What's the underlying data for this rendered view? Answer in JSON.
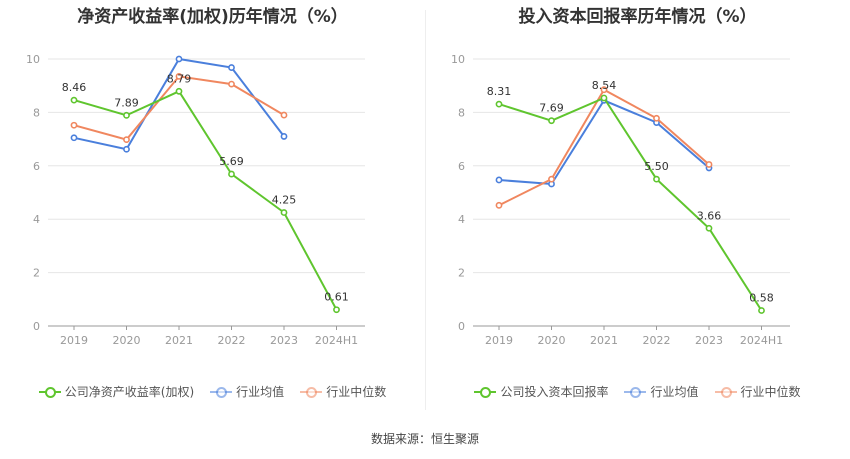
{
  "source_text": "数据来源：恒生聚源",
  "chart_data": [
    {
      "type": "line",
      "title": "净资产收益率(加权)历年情况（%）",
      "categories": [
        "2019",
        "2020",
        "2021",
        "2022",
        "2023",
        "2024H1"
      ],
      "ylim": [
        0,
        10
      ],
      "yticks": [
        0,
        2,
        4,
        6,
        8,
        10
      ],
      "grid": true,
      "legend_position": "bottom",
      "series": [
        {
          "name": "公司净资产收益率(加权)",
          "color": "#5fc52e",
          "values": [
            8.46,
            7.89,
            8.79,
            5.69,
            4.25,
            0.61
          ],
          "labels": [
            "8.46",
            "7.89",
            "8.79",
            "5.69",
            "4.25",
            "0.61"
          ]
        },
        {
          "name": "行业均值",
          "color": "#4a7fdc",
          "values": [
            7.05,
            6.62,
            10.0,
            9.68,
            7.1,
            null
          ]
        },
        {
          "name": "行业中位数",
          "color": "#f0875f",
          "values": [
            7.52,
            6.98,
            9.35,
            9.06,
            7.9,
            null
          ]
        }
      ]
    },
    {
      "type": "line",
      "title": "投入资本回报率历年情况（%）",
      "categories": [
        "2019",
        "2020",
        "2021",
        "2022",
        "2023",
        "2024H1"
      ],
      "ylim": [
        0,
        10
      ],
      "yticks": [
        0,
        2,
        4,
        6,
        8,
        10
      ],
      "grid": true,
      "legend_position": "bottom",
      "series": [
        {
          "name": "公司投入资本回报率",
          "color": "#5fc52e",
          "values": [
            8.31,
            7.69,
            8.54,
            5.5,
            3.66,
            0.58
          ],
          "labels": [
            "8.31",
            "7.69",
            "8.54",
            "5.50",
            "3.66",
            "0.58"
          ]
        },
        {
          "name": "行业均值",
          "color": "#4a7fdc",
          "values": [
            5.47,
            5.32,
            8.45,
            7.62,
            5.92,
            null
          ]
        },
        {
          "name": "行业中位数",
          "color": "#f0875f",
          "values": [
            4.52,
            5.5,
            8.85,
            7.78,
            6.05,
            null
          ]
        }
      ]
    }
  ]
}
